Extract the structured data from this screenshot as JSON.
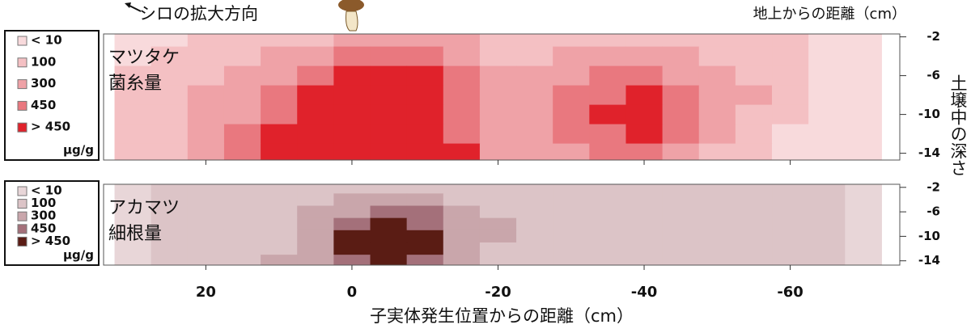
{
  "annotations": {
    "arrow_label": "シロの拡大方向",
    "top_right_label": "地上からの距離（cm）",
    "x_label": "子実体発生位置からの距離（cm）",
    "y_label": "土壌中の深さ"
  },
  "chart_data": [
    {
      "type": "heatmap",
      "title_lines": [
        "マツタケ",
        "菌糸量"
      ],
      "x": [
        30,
        25,
        20,
        15,
        10,
        5,
        0,
        -5,
        -10,
        -15,
        -20,
        -25,
        -30,
        -35,
        -40,
        -45,
        -50,
        -55,
        -60,
        -65,
        -70
      ],
      "y": [
        -2,
        -4,
        -6,
        -8,
        -10,
        -12,
        -14
      ],
      "values": [
        [
          10,
          10,
          100,
          100,
          100,
          100,
          300,
          300,
          300,
          300,
          100,
          100,
          100,
          100,
          100,
          100,
          100,
          100,
          100,
          10,
          10
        ],
        [
          10,
          100,
          100,
          100,
          300,
          300,
          450,
          450,
          450,
          300,
          100,
          100,
          300,
          300,
          300,
          300,
          100,
          100,
          100,
          10,
          10
        ],
        [
          100,
          100,
          100,
          300,
          300,
          450,
          500,
          500,
          500,
          450,
          300,
          300,
          300,
          450,
          450,
          300,
          300,
          100,
          100,
          10,
          10
        ],
        [
          100,
          100,
          300,
          300,
          450,
          500,
          500,
          500,
          500,
          450,
          300,
          300,
          450,
          450,
          500,
          450,
          300,
          300,
          100,
          10,
          10
        ],
        [
          100,
          100,
          300,
          300,
          450,
          500,
          500,
          500,
          500,
          450,
          300,
          300,
          450,
          500,
          500,
          450,
          300,
          100,
          100,
          10,
          10
        ],
        [
          100,
          100,
          300,
          450,
          500,
          500,
          500,
          500,
          500,
          450,
          300,
          300,
          450,
          450,
          500,
          450,
          300,
          100,
          10,
          10,
          10
        ],
        [
          100,
          100,
          300,
          450,
          500,
          500,
          500,
          500,
          500,
          500,
          300,
          300,
          300,
          450,
          450,
          300,
          100,
          100,
          10,
          10,
          10
        ]
      ],
      "levels": [
        10,
        100,
        300,
        450
      ],
      "legend": {
        "items": [
          {
            "label": "< 10",
            "color": "#f8dadc"
          },
          {
            "label": "100",
            "color": "#f4c0c3"
          },
          {
            "label": "300",
            "color": "#efa2a7"
          },
          {
            "label": "450",
            "color": "#e9787f"
          },
          {
            "label": "> 450",
            "color": "#e0222b"
          }
        ],
        "unit": "µg/g"
      },
      "xlim": [
        34,
        -75
      ],
      "ylim": [
        -14.7,
        -1.7
      ],
      "xticks": [
        20,
        0,
        -20,
        -40,
        -60
      ],
      "yticks": [
        -2,
        -6,
        -10,
        -14
      ]
    },
    {
      "type": "heatmap",
      "title_lines": [
        "アカマツ",
        "細根量"
      ],
      "x": [
        30,
        25,
        20,
        15,
        10,
        5,
        0,
        -5,
        -10,
        -15,
        -20,
        -25,
        -30,
        -35,
        -40,
        -45,
        -50,
        -55,
        -60,
        -65,
        -70
      ],
      "y": [
        -2,
        -4,
        -6,
        -8,
        -10,
        -12,
        -14
      ],
      "values": [
        [
          10,
          100,
          100,
          100,
          100,
          100,
          100,
          100,
          100,
          100,
          100,
          100,
          100,
          100,
          100,
          100,
          100,
          100,
          100,
          100,
          10
        ],
        [
          10,
          100,
          100,
          100,
          100,
          100,
          300,
          300,
          300,
          100,
          100,
          100,
          100,
          100,
          100,
          100,
          100,
          100,
          100,
          100,
          10
        ],
        [
          10,
          100,
          100,
          100,
          100,
          300,
          300,
          450,
          450,
          300,
          100,
          100,
          100,
          100,
          100,
          100,
          100,
          100,
          100,
          100,
          10
        ],
        [
          10,
          100,
          100,
          100,
          100,
          300,
          450,
          500,
          450,
          300,
          300,
          100,
          100,
          100,
          100,
          100,
          100,
          100,
          100,
          100,
          10
        ],
        [
          10,
          100,
          100,
          100,
          100,
          300,
          500,
          500,
          500,
          300,
          300,
          100,
          100,
          100,
          100,
          100,
          100,
          100,
          100,
          100,
          10
        ],
        [
          10,
          100,
          100,
          100,
          100,
          300,
          500,
          500,
          500,
          300,
          100,
          100,
          100,
          100,
          100,
          100,
          100,
          100,
          100,
          100,
          10
        ],
        [
          10,
          100,
          100,
          100,
          300,
          300,
          450,
          500,
          450,
          300,
          100,
          100,
          100,
          100,
          100,
          100,
          100,
          100,
          100,
          100,
          10
        ]
      ],
      "levels": [
        10,
        100,
        300,
        450
      ],
      "legend": {
        "items": [
          {
            "label": "< 10",
            "color": "#e8d6d8"
          },
          {
            "label": "100",
            "color": "#dcc4c7"
          },
          {
            "label": "300",
            "color": "#c9a6ab"
          },
          {
            "label": "450",
            "color": "#a4707a"
          },
          {
            "label": "> 450",
            "color": "#5a1c14"
          }
        ],
        "unit": "µg/g"
      },
      "xlim": [
        34,
        -75
      ],
      "ylim": [
        -14.7,
        -1.5
      ],
      "xticks": [
        20,
        0,
        -20,
        -40,
        -60
      ],
      "yticks": [
        -2,
        -6,
        -10,
        -14
      ]
    }
  ]
}
